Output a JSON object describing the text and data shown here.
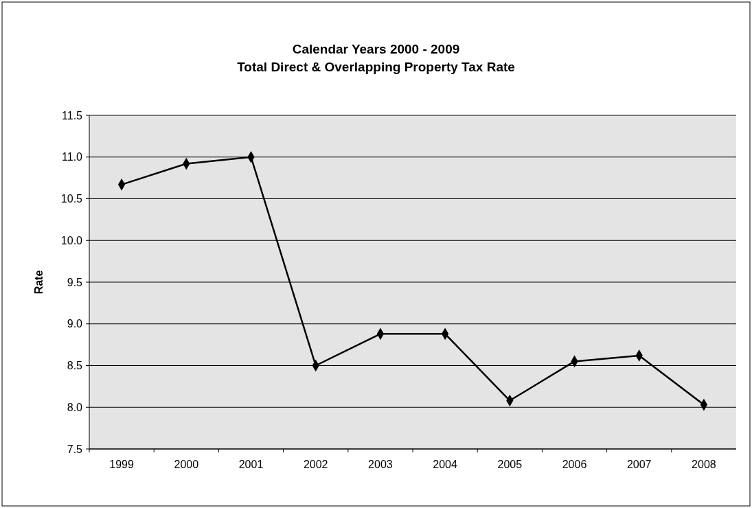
{
  "chart_data": {
    "type": "line",
    "title": "Calendar Years 2000 - 2009",
    "subtitle": "Total Direct & Overlapping Property Tax Rate",
    "ylabel": "Rate",
    "categories": [
      "1999",
      "2000",
      "2001",
      "2002",
      "2003",
      "2004",
      "2005",
      "2006",
      "2007",
      "2008"
    ],
    "series": [
      {
        "color": "#000000",
        "values": [
          10.67,
          10.92,
          11.0,
          8.5,
          8.88,
          8.88,
          8.08,
          8.55,
          8.62,
          8.03
        ]
      }
    ],
    "ylim": [
      7.5,
      11.5
    ],
    "yticks": [
      {
        "value": 7.5,
        "label": "7.5"
      },
      {
        "value": 8,
        "label": "8.0"
      },
      {
        "value": 8.5,
        "label": "8.5"
      },
      {
        "value": 9,
        "label": "9.0"
      },
      {
        "value": 9.5,
        "label": "9.5"
      },
      {
        "value": 10,
        "label": "10.0"
      },
      {
        "value": 10.5,
        "label": "10.5"
      },
      {
        "value": 11,
        "label": "11.0"
      },
      {
        "value": 11.5,
        "label": "11.5"
      }
    ],
    "grid": "y",
    "marker": "diamond",
    "line_style": "solid"
  }
}
